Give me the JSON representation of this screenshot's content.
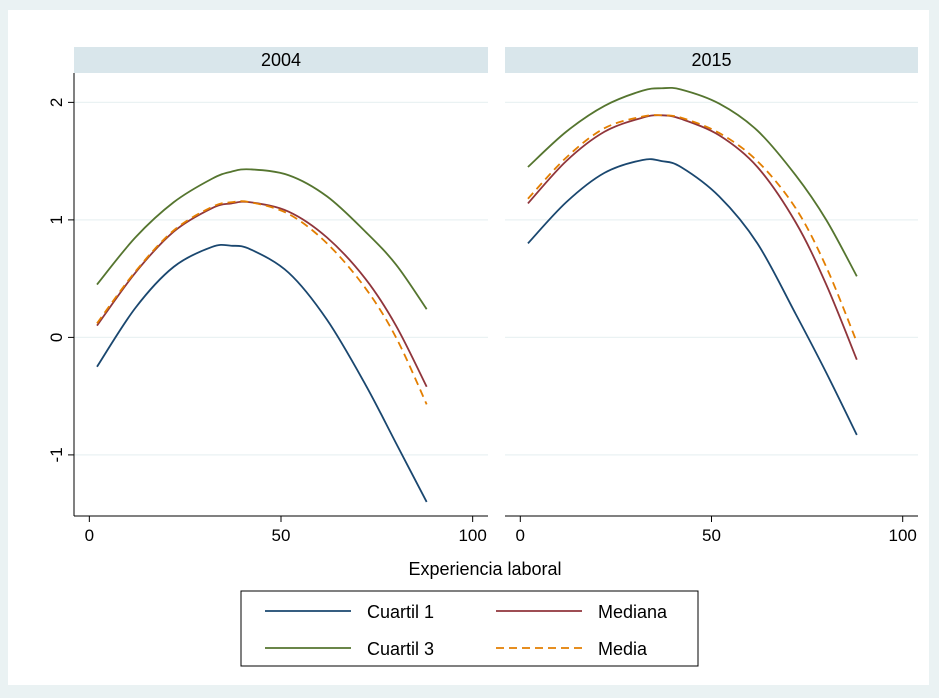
{
  "chart_data": {
    "type": "line",
    "xlabel": "Experiencia laboral",
    "ylabel": "",
    "xlim": [
      -4,
      104
    ],
    "ylim": [
      -1.52,
      2.25
    ],
    "xticks": [
      0,
      50,
      100
    ],
    "yticks": [
      -1,
      0,
      1,
      2
    ],
    "grid": true,
    "legend_position": "bottom",
    "series_styles": [
      {
        "name": "Cuartil 1",
        "color": "#1a476f",
        "dash": "solid"
      },
      {
        "name": "Mediana",
        "color": "#90353b",
        "dash": "solid"
      },
      {
        "name": "Cuartil 3",
        "color": "#55752f",
        "dash": "solid"
      },
      {
        "name": "Media",
        "color": "#e37e00",
        "dash": "dashed"
      }
    ],
    "panels": [
      {
        "title": "2004",
        "x": [
          2,
          12,
          22,
          32,
          37,
          42,
          52,
          62,
          72,
          80,
          88
        ],
        "series": [
          {
            "name": "Cuartil 1",
            "values": [
              -0.25,
              0.25,
              0.6,
              0.77,
              0.78,
              0.75,
              0.55,
              0.15,
              -0.4,
              -0.9,
              -1.4
            ]
          },
          {
            "name": "Mediana",
            "values": [
              0.1,
              0.55,
              0.9,
              1.1,
              1.14,
              1.15,
              1.07,
              0.85,
              0.5,
              0.1,
              -0.42
            ]
          },
          {
            "name": "Cuartil 3",
            "values": [
              0.45,
              0.85,
              1.15,
              1.35,
              1.41,
              1.43,
              1.38,
              1.2,
              0.9,
              0.62,
              0.24
            ]
          },
          {
            "name": "Media",
            "values": [
              0.12,
              0.56,
              0.91,
              1.11,
              1.15,
              1.15,
              1.05,
              0.8,
              0.42,
              0.0,
              -0.57
            ]
          }
        ]
      },
      {
        "title": "2015",
        "x": [
          2,
          12,
          22,
          32,
          37,
          42,
          52,
          62,
          72,
          80,
          88
        ],
        "series": [
          {
            "name": "Cuartil 1",
            "values": [
              0.8,
              1.15,
              1.4,
              1.51,
              1.5,
              1.45,
              1.2,
              0.8,
              0.2,
              -0.3,
              -0.83
            ]
          },
          {
            "name": "Mediana",
            "values": [
              1.14,
              1.5,
              1.75,
              1.87,
              1.89,
              1.86,
              1.72,
              1.45,
              0.98,
              0.45,
              -0.19
            ]
          },
          {
            "name": "Cuartil 3",
            "values": [
              1.45,
              1.75,
              1.97,
              2.1,
              2.12,
              2.11,
              1.99,
              1.76,
              1.38,
              1.0,
              0.52
            ]
          },
          {
            "name": "Media",
            "values": [
              1.18,
              1.53,
              1.78,
              1.88,
              1.89,
              1.87,
              1.74,
              1.5,
              1.1,
              0.6,
              -0.04
            ]
          }
        ]
      }
    ]
  }
}
